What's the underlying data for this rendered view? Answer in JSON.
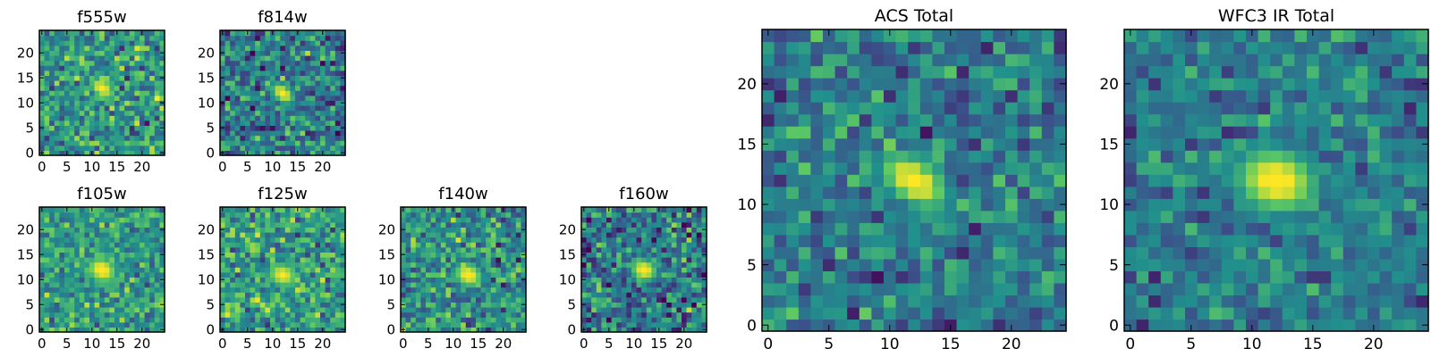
{
  "colormap": "viridis",
  "colors": {
    "viridis_stops": [
      "#440154",
      "#3b528b",
      "#21908d",
      "#5dc963",
      "#fde725"
    ],
    "axes_frame": "#000000",
    "text": "#000000"
  },
  "chart_data": [
    {
      "type": "heatmap",
      "title": "f555w",
      "grid": false,
      "x_range": [
        0,
        24
      ],
      "y_range": [
        0,
        24
      ],
      "x_ticks": [
        0,
        5,
        10,
        15,
        20
      ],
      "y_ticks": [
        0,
        5,
        10,
        15,
        20
      ],
      "source": {
        "center": [
          12,
          13
        ],
        "peak": 1.0,
        "sigma_major": 2.4,
        "sigma_minor": 1.5,
        "angle_deg": -35
      },
      "background_level": 0.52,
      "noise_level": 0.22,
      "y_origin": "lower"
    },
    {
      "type": "heatmap",
      "title": "f814w",
      "grid": false,
      "x_range": [
        0,
        24
      ],
      "y_range": [
        0,
        24
      ],
      "x_ticks": [
        0,
        5,
        10,
        15,
        20
      ],
      "y_ticks": [
        0,
        5,
        10,
        15,
        20
      ],
      "source": {
        "center": [
          12,
          12
        ],
        "peak": 1.0,
        "sigma_major": 2.3,
        "sigma_minor": 1.4,
        "angle_deg": -40
      },
      "background_level": 0.42,
      "noise_level": 0.22,
      "y_origin": "lower"
    },
    {
      "type": "heatmap",
      "title": "f105w",
      "grid": false,
      "x_range": [
        0,
        24
      ],
      "y_range": [
        0,
        24
      ],
      "x_ticks": [
        0,
        5,
        10,
        15,
        20
      ],
      "y_ticks": [
        0,
        5,
        10,
        15,
        20
      ],
      "source": {
        "center": [
          12,
          12
        ],
        "peak": 1.0,
        "sigma_major": 2.8,
        "sigma_minor": 2.2,
        "angle_deg": -30
      },
      "background_level": 0.55,
      "noise_level": 0.17,
      "y_origin": "lower"
    },
    {
      "type": "heatmap",
      "title": "f125w",
      "grid": false,
      "x_range": [
        0,
        24
      ],
      "y_range": [
        0,
        24
      ],
      "x_ticks": [
        0,
        5,
        10,
        15,
        20
      ],
      "y_ticks": [
        0,
        5,
        10,
        15,
        20
      ],
      "source": {
        "center": [
          12,
          11
        ],
        "peak": 0.95,
        "sigma_major": 2.8,
        "sigma_minor": 2.2,
        "angle_deg": -20
      },
      "background_level": 0.55,
      "noise_level": 0.2,
      "y_origin": "lower"
    },
    {
      "type": "heatmap",
      "title": "f140w",
      "grid": false,
      "x_range": [
        0,
        24
      ],
      "y_range": [
        0,
        24
      ],
      "x_ticks": [
        0,
        5,
        10,
        15,
        20
      ],
      "y_ticks": [
        0,
        5,
        10,
        15,
        20
      ],
      "source": {
        "center": [
          13,
          11
        ],
        "peak": 1.0,
        "sigma_major": 2.6,
        "sigma_minor": 2.0,
        "angle_deg": -25
      },
      "background_level": 0.5,
      "noise_level": 0.22,
      "y_origin": "lower"
    },
    {
      "type": "heatmap",
      "title": "f160w",
      "grid": false,
      "x_range": [
        0,
        24
      ],
      "y_range": [
        0,
        24
      ],
      "x_ticks": [
        0,
        5,
        10,
        15,
        20
      ],
      "y_ticks": [
        0,
        5,
        10,
        15,
        20
      ],
      "source": {
        "center": [
          12,
          12
        ],
        "peak": 1.0,
        "sigma_major": 2.3,
        "sigma_minor": 1.9,
        "angle_deg": -20
      },
      "background_level": 0.4,
      "noise_level": 0.25,
      "y_origin": "lower"
    },
    {
      "type": "heatmap",
      "title": "ACS Total",
      "grid": false,
      "x_range": [
        0,
        24
      ],
      "y_range": [
        0,
        24
      ],
      "x_ticks": [
        0,
        5,
        10,
        15,
        20
      ],
      "y_ticks": [
        0,
        5,
        10,
        15,
        20
      ],
      "source": {
        "center": [
          12,
          12
        ],
        "peak": 1.0,
        "sigma_major": 2.8,
        "sigma_minor": 1.6,
        "angle_deg": -35
      },
      "background_level": 0.42,
      "noise_level": 0.17,
      "y_origin": "lower"
    },
    {
      "type": "heatmap",
      "title": "WFC3 IR Total",
      "grid": false,
      "x_range": [
        0,
        24
      ],
      "y_range": [
        0,
        24
      ],
      "x_ticks": [
        0,
        5,
        10,
        15,
        20
      ],
      "y_ticks": [
        0,
        5,
        10,
        15,
        20
      ],
      "source": {
        "center": [
          12,
          12
        ],
        "peak": 1.0,
        "sigma_major": 3.0,
        "sigma_minor": 2.3,
        "angle_deg": -15
      },
      "background_level": 0.42,
      "noise_level": 0.15,
      "y_origin": "lower"
    }
  ]
}
